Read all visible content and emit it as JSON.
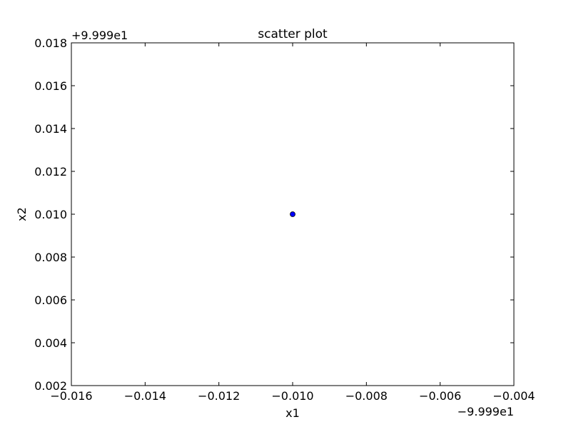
{
  "chart_data": {
    "type": "scatter",
    "title": "scatter plot",
    "xlabel": "x1",
    "ylabel": "x2",
    "x_offset_label": "−9.999e1",
    "y_offset_label": "+9.999e1",
    "xlim": [
      -0.016,
      -0.004
    ],
    "ylim": [
      0.002,
      0.018
    ],
    "x_ticks": [
      -0.016,
      -0.014,
      -0.012,
      -0.01,
      -0.008,
      -0.006,
      -0.004
    ],
    "x_tick_labels": [
      "−0.016",
      "−0.014",
      "−0.012",
      "−0.010",
      "−0.008",
      "−0.006",
      "−0.004"
    ],
    "y_ticks": [
      0.002,
      0.004,
      0.006,
      0.008,
      0.01,
      0.012,
      0.014,
      0.016,
      0.018
    ],
    "y_tick_labels": [
      "0.002",
      "0.004",
      "0.006",
      "0.008",
      "0.010",
      "0.012",
      "0.014",
      "0.016",
      "0.018"
    ],
    "grid": false,
    "marker_color": "#0000ff",
    "series": [
      {
        "x": [
          -0.01
        ],
        "y": [
          0.01
        ]
      }
    ]
  }
}
